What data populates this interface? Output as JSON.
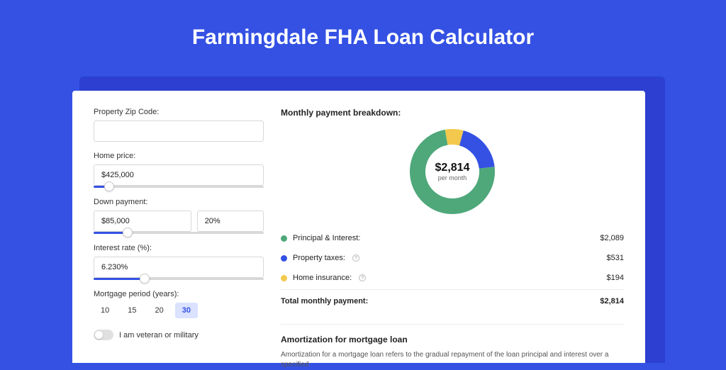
{
  "title": "Farmingdale FHA Loan Calculator",
  "colors": {
    "page_bg": "#3451e4",
    "shadow": "#2c3fd0",
    "panel_bg": "#ffffff",
    "accent": "#3451e4"
  },
  "form": {
    "zip": {
      "label": "Property Zip Code:",
      "value": ""
    },
    "home_price": {
      "label": "Home price:",
      "value": "$425,000",
      "slider_pct": 9
    },
    "down_payment": {
      "label": "Down payment:",
      "amount": "$85,000",
      "pct": "20%",
      "slider_pct": 20
    },
    "interest_rate": {
      "label": "Interest rate (%):",
      "value": "6.230%",
      "slider_pct": 30
    },
    "period": {
      "label": "Mortgage period (years):",
      "options": [
        "10",
        "15",
        "20",
        "30"
      ],
      "selected": "30"
    },
    "veteran": {
      "label": "I am veteran or military",
      "checked": false
    }
  },
  "breakdown": {
    "title": "Monthly payment breakdown:",
    "center_amount": "$2,814",
    "center_sub": "per month",
    "items": [
      {
        "label": "Principal & Interest:",
        "value": "$2,089",
        "color": "#4fa87a",
        "info": false,
        "pct": 74
      },
      {
        "label": "Property taxes:",
        "value": "$531",
        "color": "#3451e4",
        "info": true,
        "pct": 19
      },
      {
        "label": "Home insurance:",
        "value": "$194",
        "color": "#f2c94c",
        "info": true,
        "pct": 7
      }
    ],
    "total": {
      "label": "Total monthly payment:",
      "value": "$2,814"
    },
    "donut": {
      "thickness": 22,
      "bg": "#ffffff"
    }
  },
  "amortization": {
    "title": "Amortization for mortgage loan",
    "text": "Amortization for a mortgage loan refers to the gradual repayment of the loan principal and interest over a specified"
  }
}
